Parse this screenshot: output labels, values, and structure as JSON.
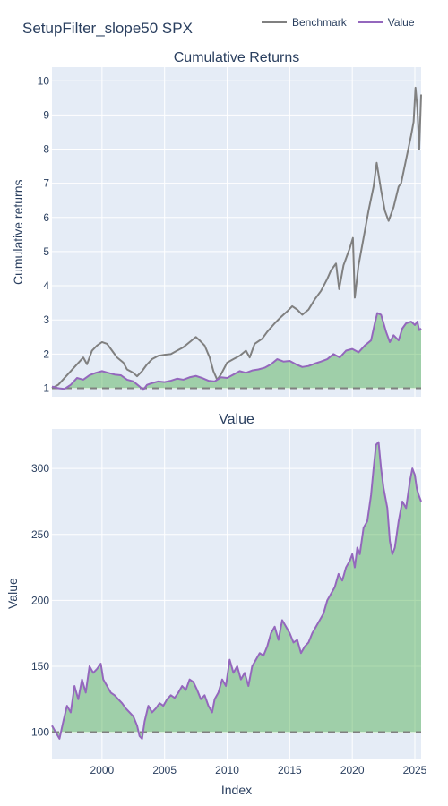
{
  "title": "SetupFilter_slope50 SPX",
  "legend": [
    {
      "name": "Benchmark",
      "color": "#808080"
    },
    {
      "name": "Value",
      "color": "#9467bd"
    }
  ],
  "xlabel": "Index",
  "colors": {
    "benchmark": "#808080",
    "value": "#9467bd",
    "fill": "#2ca02c",
    "baseline": "#808080",
    "plot_bg": "#e5ecf6",
    "grid": "#ffffff"
  },
  "chart_data": [
    {
      "type": "line",
      "title": "Cumulative Returns",
      "ylabel": "Cumulative returns",
      "xlim": [
        1996.0,
        2025.5
      ],
      "ylim": [
        0.75,
        10.4
      ],
      "xticks": [
        2000,
        2005,
        2010,
        2015,
        2020,
        2025
      ],
      "yticks": [
        1,
        2,
        3,
        4,
        5,
        6,
        7,
        8,
        9,
        10
      ],
      "baseline": 1,
      "series": [
        {
          "name": "Benchmark",
          "x": [
            1996.0,
            1996.5,
            1997.0,
            1997.5,
            1998.0,
            1998.5,
            1998.8,
            1999.2,
            1999.6,
            2000.0,
            2000.4,
            2000.8,
            2001.2,
            2001.7,
            2002.0,
            2002.5,
            2002.8,
            2003.2,
            2003.6,
            2004.0,
            2004.5,
            2005.0,
            2005.5,
            2006.0,
            2006.5,
            2007.0,
            2007.5,
            2007.8,
            2008.2,
            2008.6,
            2008.9,
            2009.2,
            2009.5,
            2010.0,
            2010.5,
            2011.0,
            2011.5,
            2011.8,
            2012.2,
            2012.8,
            2013.2,
            2013.8,
            2014.2,
            2014.8,
            2015.2,
            2015.6,
            2016.0,
            2016.5,
            2017.0,
            2017.5,
            2018.0,
            2018.3,
            2018.7,
            2018.95,
            2019.3,
            2019.8,
            2020.05,
            2020.2,
            2020.5,
            2020.9,
            2021.3,
            2021.7,
            2021.95,
            2022.3,
            2022.6,
            2022.9,
            2023.3,
            2023.7,
            2023.9,
            2024.3,
            2024.7,
            2024.9,
            2025.05,
            2025.2,
            2025.35,
            2025.5
          ],
          "y": [
            1.0,
            1.1,
            1.3,
            1.5,
            1.7,
            1.9,
            1.7,
            2.1,
            2.25,
            2.35,
            2.3,
            2.1,
            1.9,
            1.75,
            1.55,
            1.45,
            1.35,
            1.5,
            1.7,
            1.85,
            1.95,
            1.98,
            2.0,
            2.1,
            2.2,
            2.35,
            2.5,
            2.4,
            2.25,
            1.9,
            1.5,
            1.25,
            1.4,
            1.75,
            1.85,
            1.95,
            2.1,
            1.9,
            2.3,
            2.45,
            2.65,
            2.9,
            3.05,
            3.25,
            3.4,
            3.3,
            3.15,
            3.3,
            3.6,
            3.85,
            4.2,
            4.45,
            4.65,
            3.9,
            4.6,
            5.1,
            5.4,
            3.65,
            4.6,
            5.4,
            6.2,
            6.9,
            7.6,
            6.8,
            6.2,
            5.9,
            6.3,
            6.9,
            7.0,
            7.7,
            8.4,
            8.8,
            9.8,
            9.2,
            8.0,
            9.6
          ]
        },
        {
          "name": "Value",
          "x": [
            1996.0,
            1996.5,
            1997.0,
            1997.5,
            1998.0,
            1998.5,
            1999.0,
            1999.5,
            2000.0,
            2000.5,
            2001.0,
            2001.5,
            2002.0,
            2002.5,
            2003.0,
            2003.3,
            2003.6,
            2004.0,
            2004.5,
            2005.0,
            2005.5,
            2006.0,
            2006.5,
            2007.0,
            2007.5,
            2008.0,
            2008.5,
            2009.0,
            2009.5,
            2010.0,
            2010.5,
            2011.0,
            2011.5,
            2012.0,
            2012.5,
            2013.0,
            2013.5,
            2014.0,
            2014.5,
            2015.0,
            2015.5,
            2016.0,
            2016.5,
            2017.0,
            2017.5,
            2018.0,
            2018.5,
            2019.0,
            2019.5,
            2020.0,
            2020.5,
            2021.0,
            2021.5,
            2021.8,
            2022.0,
            2022.3,
            2022.7,
            2023.0,
            2023.3,
            2023.7,
            2024.0,
            2024.3,
            2024.7,
            2025.0,
            2025.2,
            2025.35,
            2025.5
          ],
          "y": [
            1.05,
            1.0,
            0.98,
            1.1,
            1.3,
            1.25,
            1.38,
            1.45,
            1.5,
            1.45,
            1.4,
            1.38,
            1.25,
            1.2,
            1.05,
            0.95,
            1.1,
            1.15,
            1.2,
            1.18,
            1.22,
            1.28,
            1.25,
            1.32,
            1.36,
            1.3,
            1.22,
            1.2,
            1.32,
            1.3,
            1.4,
            1.5,
            1.45,
            1.52,
            1.55,
            1.6,
            1.7,
            1.85,
            1.78,
            1.8,
            1.7,
            1.62,
            1.65,
            1.72,
            1.78,
            1.85,
            2.0,
            1.9,
            2.1,
            2.15,
            2.05,
            2.25,
            2.4,
            2.9,
            3.2,
            3.15,
            2.65,
            2.35,
            2.55,
            2.4,
            2.75,
            2.9,
            2.95,
            2.85,
            2.95,
            2.7,
            2.75
          ]
        }
      ]
    },
    {
      "type": "area",
      "title": "Value",
      "ylabel": "Value",
      "xlim": [
        1996.0,
        2025.5
      ],
      "ylim": [
        80,
        330
      ],
      "xticks": [
        2000,
        2005,
        2010,
        2015,
        2020,
        2025
      ],
      "yticks": [
        100,
        150,
        200,
        250,
        300
      ],
      "baseline": 100,
      "series": [
        {
          "name": "Value",
          "x": [
            1996.0,
            1996.3,
            1996.6,
            1996.9,
            1997.2,
            1997.5,
            1997.8,
            1998.1,
            1998.4,
            1998.7,
            1999.0,
            1999.3,
            1999.6,
            1999.9,
            2000.1,
            2000.4,
            2000.7,
            2001.0,
            2001.3,
            2001.6,
            2001.9,
            2002.2,
            2002.5,
            2002.8,
            2003.0,
            2003.2,
            2003.4,
            2003.7,
            2004.0,
            2004.3,
            2004.6,
            2004.9,
            2005.2,
            2005.5,
            2005.8,
            2006.1,
            2006.4,
            2006.7,
            2007.0,
            2007.3,
            2007.6,
            2007.9,
            2008.2,
            2008.5,
            2008.8,
            2009.0,
            2009.3,
            2009.6,
            2009.9,
            2010.2,
            2010.5,
            2010.8,
            2011.1,
            2011.4,
            2011.7,
            2012.0,
            2012.3,
            2012.6,
            2012.9,
            2013.2,
            2013.5,
            2013.8,
            2014.1,
            2014.4,
            2014.7,
            2015.0,
            2015.3,
            2015.6,
            2015.9,
            2016.2,
            2016.5,
            2016.8,
            2017.1,
            2017.4,
            2017.7,
            2018.0,
            2018.3,
            2018.6,
            2018.9,
            2019.2,
            2019.5,
            2019.8,
            2020.0,
            2020.2,
            2020.4,
            2020.6,
            2020.9,
            2021.2,
            2021.5,
            2021.7,
            2021.9,
            2022.1,
            2022.3,
            2022.5,
            2022.8,
            2023.0,
            2023.2,
            2023.4,
            2023.7,
            2024.0,
            2024.3,
            2024.6,
            2024.8,
            2025.0,
            2025.15,
            2025.3,
            2025.5
          ],
          "y": [
            105,
            100,
            95,
            108,
            120,
            115,
            135,
            125,
            140,
            130,
            150,
            145,
            148,
            152,
            140,
            135,
            130,
            128,
            125,
            122,
            118,
            115,
            112,
            105,
            97,
            95,
            108,
            120,
            115,
            118,
            122,
            120,
            125,
            128,
            126,
            130,
            135,
            132,
            140,
            138,
            132,
            125,
            128,
            120,
            115,
            125,
            130,
            140,
            135,
            155,
            145,
            150,
            140,
            145,
            135,
            150,
            155,
            160,
            158,
            165,
            175,
            180,
            170,
            185,
            180,
            175,
            168,
            170,
            160,
            165,
            168,
            175,
            180,
            185,
            190,
            200,
            205,
            210,
            220,
            215,
            225,
            230,
            235,
            225,
            240,
            235,
            255,
            260,
            280,
            300,
            318,
            320,
            300,
            285,
            270,
            245,
            235,
            240,
            260,
            275,
            270,
            290,
            300,
            295,
            285,
            280,
            275
          ]
        }
      ]
    }
  ]
}
